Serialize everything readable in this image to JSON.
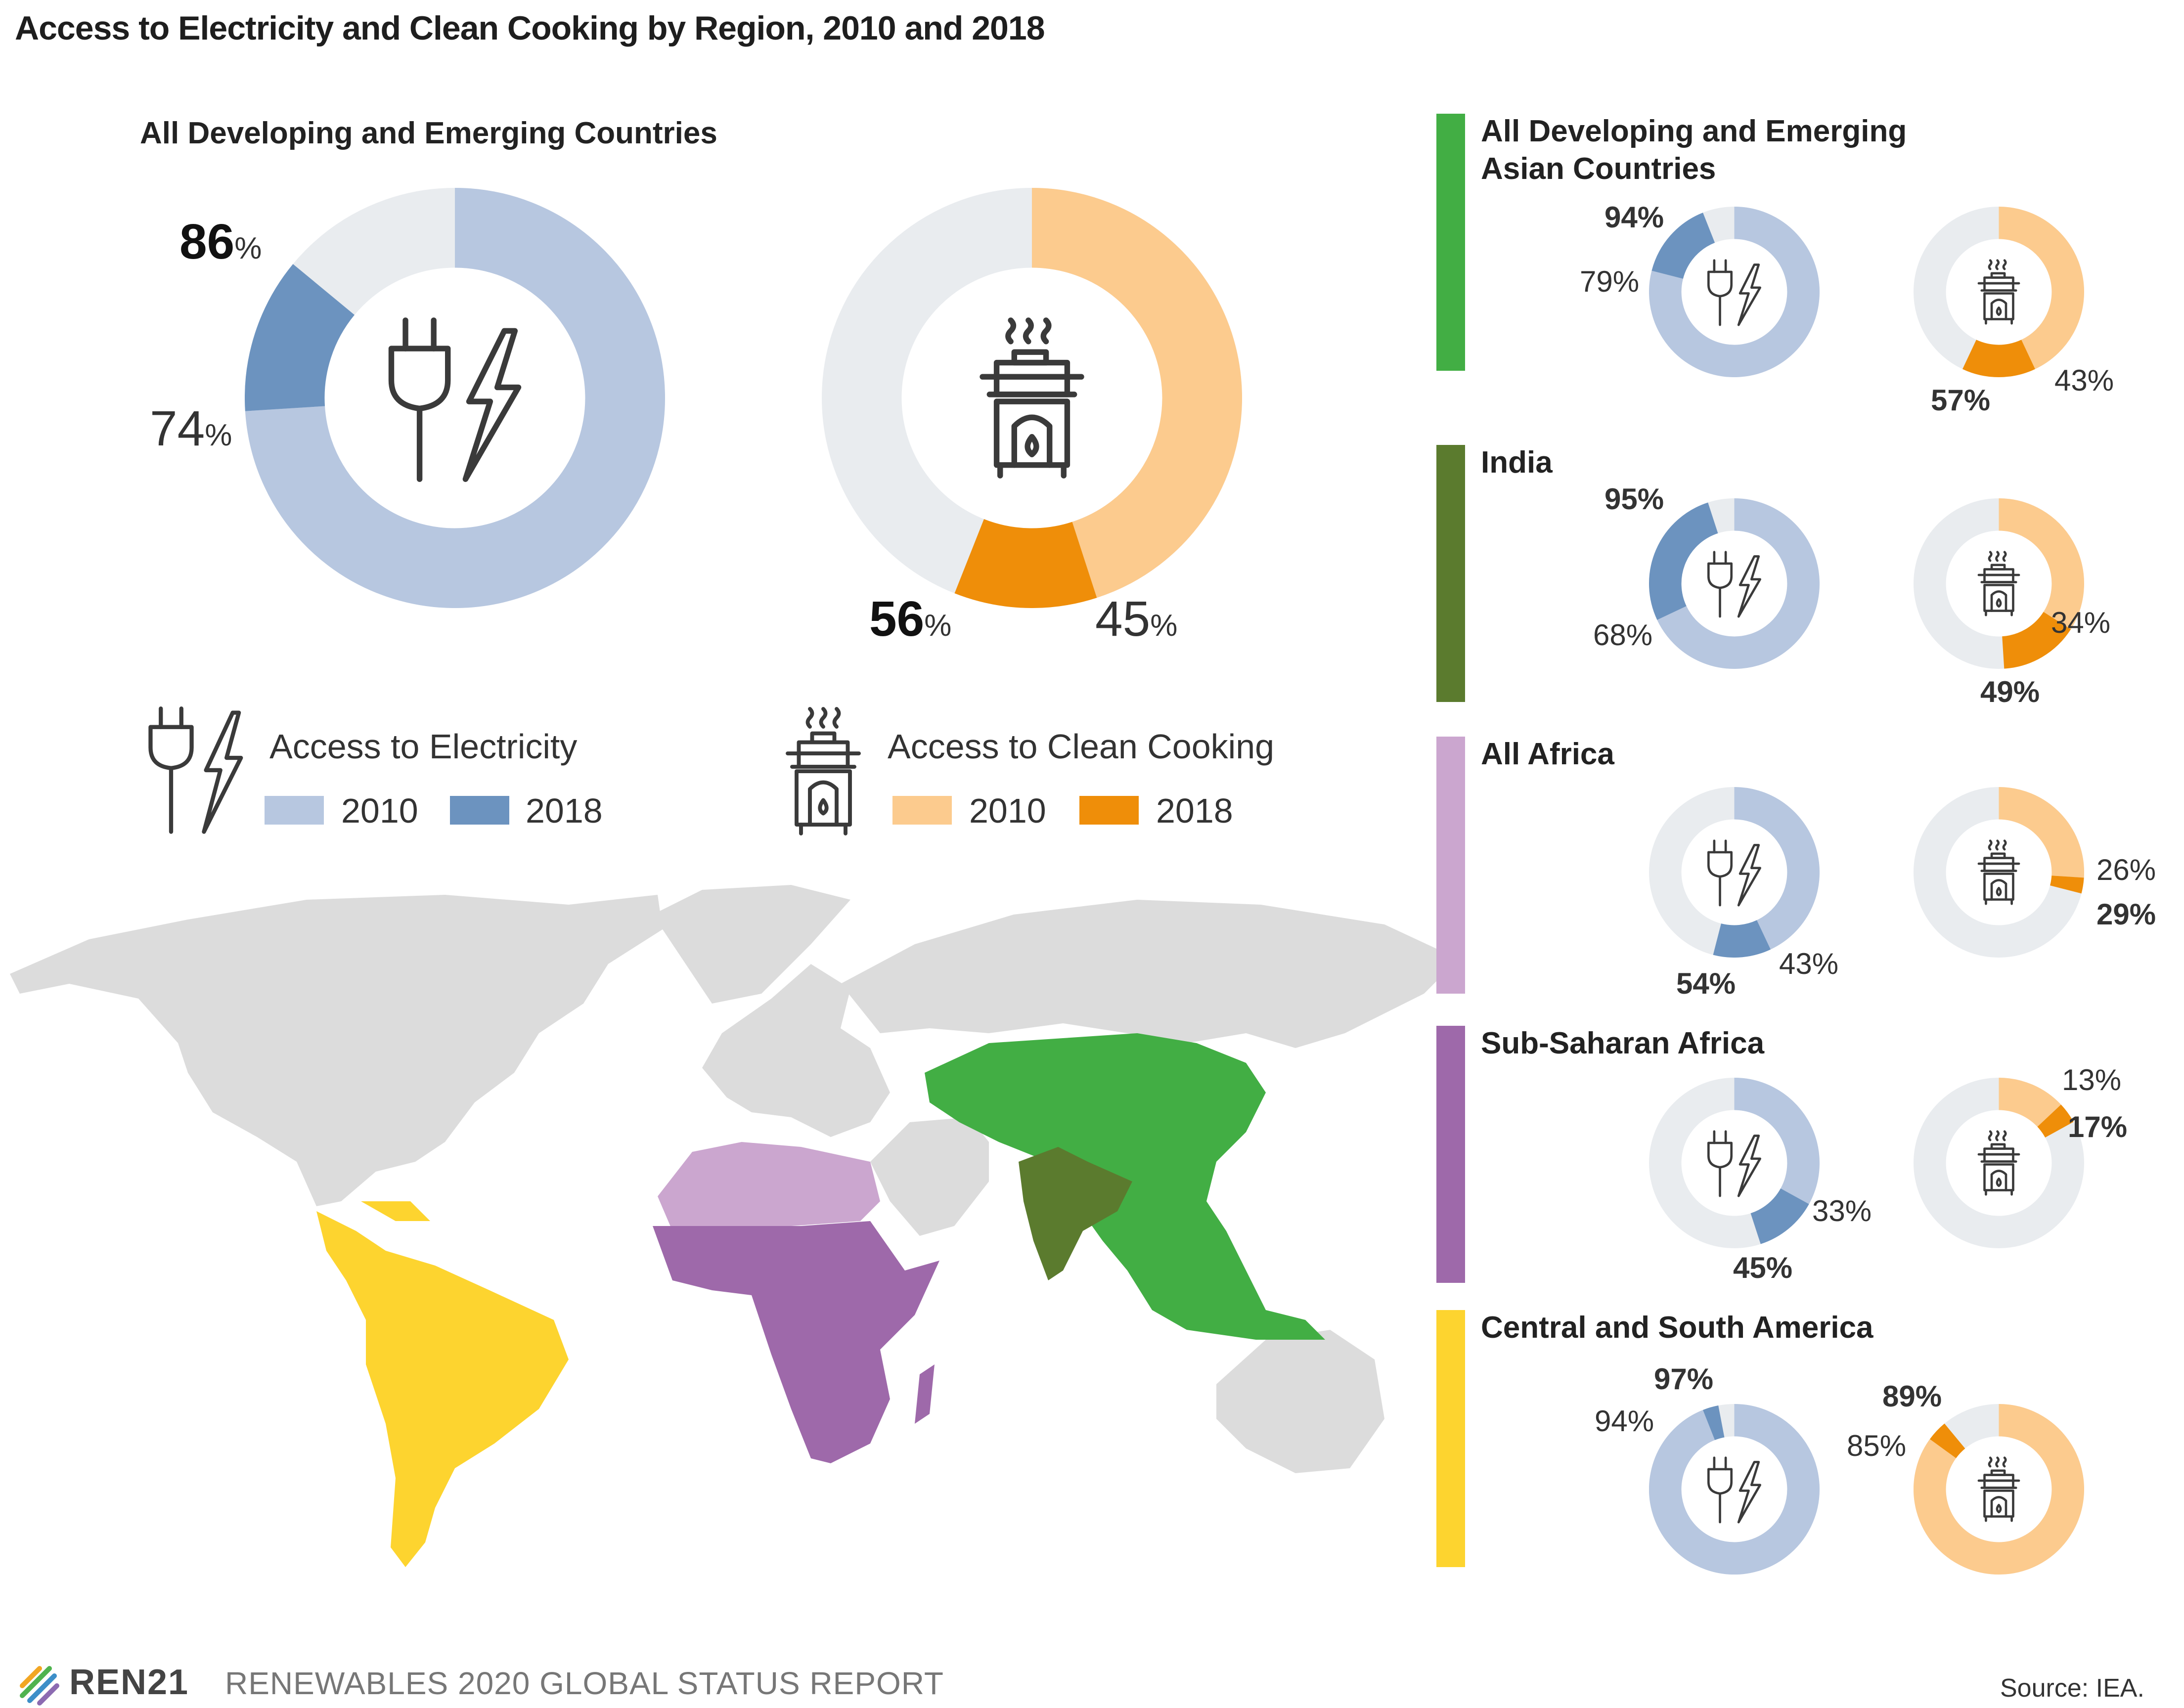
{
  "title": "Access to Electricity and Clean Cooking by Region, 2010 and 2018",
  "footer": {
    "logo": "REN21",
    "report": "RENEWABLES 2020 GLOBAL STATUS REPORT",
    "source": "Source: IEA."
  },
  "colors": {
    "elec_2010": "#b7c7e0",
    "elec_2018": "#6c93bf",
    "cook_2010": "#fccb8e",
    "cook_2018": "#ef8e09",
    "empty": "#e9ecef",
    "map_base": "#dcdcdc",
    "asia": "#42ae44",
    "india": "#5b7b2e",
    "africa": "#cba6cf",
    "ssa": "#9e69aa",
    "csa": "#fdd42f"
  },
  "legend": {
    "electricity": {
      "title": "Access to Electricity",
      "y2010": "2010",
      "y2018": "2018",
      "icon": "plug-lightning-icon"
    },
    "cooking": {
      "title": "Access to Clean Cooking",
      "y2010": "2010",
      "y2018": "2018",
      "icon": "cookstove-icon"
    }
  },
  "chart_data": {
    "type": "donut",
    "units": "% of population with access",
    "years": [
      "2010",
      "2018"
    ],
    "regions": [
      {
        "key": "all",
        "name": "All Developing and Emerging Countries",
        "map_color": null,
        "electricity": {
          "y2010": 74,
          "y2018": 86,
          "label2010": "74",
          "label2018": "86"
        },
        "cooking": {
          "y2010": 45,
          "y2018": 56,
          "label2010": "45",
          "label2018": "56"
        }
      },
      {
        "key": "asia",
        "name": "All Developing and Emerging Asian Countries",
        "map_color": "#42ae44",
        "electricity": {
          "y2010": 79,
          "y2018": 94,
          "label2010": "79",
          "label2018": "94"
        },
        "cooking": {
          "y2010": 43,
          "y2018": 57,
          "label2010": "43",
          "label2018": "57"
        }
      },
      {
        "key": "india",
        "name": "India",
        "map_color": "#5b7b2e",
        "electricity": {
          "y2010": 68,
          "y2018": 95,
          "label2010": "68",
          "label2018": "95"
        },
        "cooking": {
          "y2010": 34,
          "y2018": 49,
          "label2010": "34",
          "label2018": "49"
        }
      },
      {
        "key": "africa",
        "name": "All Africa",
        "map_color": "#cba6cf",
        "electricity": {
          "y2010": 43,
          "y2018": 54,
          "label2010": "43",
          "label2018": "54"
        },
        "cooking": {
          "y2010": 26,
          "y2018": 29,
          "label2010": "26",
          "label2018": "29"
        }
      },
      {
        "key": "ssa",
        "name": "Sub-Saharan Africa",
        "map_color": "#9e69aa",
        "electricity": {
          "y2010": 33,
          "y2018": 45,
          "label2010": "33",
          "label2018": "45"
        },
        "cooking": {
          "y2010": 13,
          "y2018": 17,
          "label2010": "13",
          "label2018": "17"
        }
      },
      {
        "key": "csa",
        "name": "Central and South America",
        "map_color": "#fdd42f",
        "electricity": {
          "y2010": 94,
          "y2018": 97,
          "label2010": "94",
          "label2018": "97"
        },
        "cooking": {
          "y2010": 85,
          "y2018": 89,
          "label2010": "85",
          "label2018": "89"
        }
      }
    ]
  }
}
